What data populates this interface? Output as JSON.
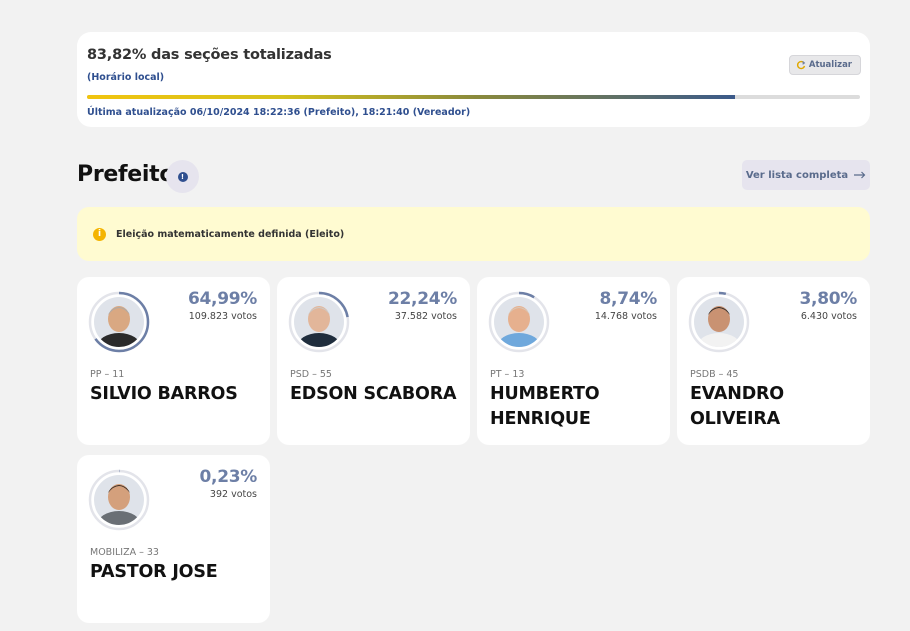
{
  "status": {
    "title": "83,82% das seções totalizadas",
    "subtitle": "(Horário local)",
    "refresh_label": "Atualizar",
    "progress_fraction": 0.8382,
    "last_update": "Última atualização 06/10/2024 18:22:36 (Prefeito), 18:21:40 (Vereador)"
  },
  "section": {
    "title": "Prefeito",
    "info_symbol": "!",
    "list_button_label": "Ver lista completa"
  },
  "alert": {
    "icon": "i",
    "text": "Eleição matematicamente definida (Eleito)"
  },
  "candidates": [
    {
      "pct": "64,99%",
      "pct_value": 64.99,
      "votes": "109.823 votos",
      "party": "PP – 11",
      "name": "SILVIO BARROS",
      "skin": "#d9a882",
      "hair": "#aaaaaa",
      "shirt": "#2b2b2b"
    },
    {
      "pct": "22,24%",
      "pct_value": 22.24,
      "votes": "37.582 votos",
      "party": "PSD – 55",
      "name": "EDSON SCABORA",
      "skin": "#e2b69a",
      "hair": "#cccccc",
      "shirt": "#1f2d3d"
    },
    {
      "pct": "8,74%",
      "pct_value": 8.74,
      "votes": "14.768 votos",
      "party": "PT – 13",
      "name": "HUMBERTO HENRIQUE",
      "skin": "#e6b08e",
      "hair": "#d9c9b9",
      "shirt": "#6fa8dc"
    },
    {
      "pct": "3,80%",
      "pct_value": 3.8,
      "votes": "6.430 votos",
      "party": "PSDB – 45",
      "name": "EVANDRO OLIVEIRA",
      "skin": "#c99272",
      "hair": "#2a2a2a",
      "shirt": "#f2f2f2"
    },
    {
      "pct": "0,23%",
      "pct_value": 0.23,
      "votes": "392 votos",
      "party": "MOBILIZA – 33",
      "name": "PASTOR JOSE",
      "skin": "#d4a07c",
      "hair": "#3a2e26",
      "shirt": "#6a6f75"
    }
  ],
  "colors": {
    "accent": "#2f4f8f",
    "ring": "#6d7fa6",
    "ring_track": "#e3e4ea",
    "alert_bg": "#fffbd1",
    "alert_icon": "#f4b400"
  }
}
